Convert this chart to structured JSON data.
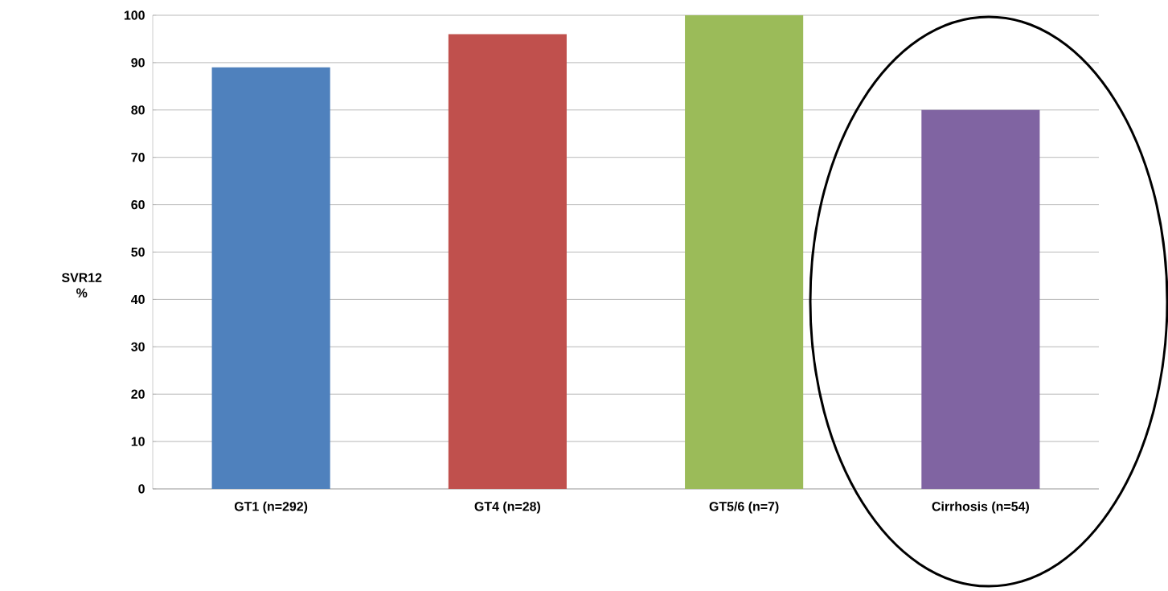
{
  "chart_data": {
    "type": "bar",
    "ylabel": "SVR12 %",
    "categories": [
      "GT1 (n=292)",
      "GT4 (n=28)",
      "GT5/6 (n=7)",
      "Cirrhosis (n=54)"
    ],
    "values": [
      89,
      96,
      100,
      80
    ],
    "colors": [
      "#4f81bd",
      "#c0504d",
      "#9bbb59",
      "#8064a2"
    ],
    "ylim": [
      0,
      100
    ],
    "yticks": [
      0,
      10,
      20,
      30,
      40,
      50,
      60,
      70,
      80,
      90,
      100
    ],
    "grid": "y"
  }
}
